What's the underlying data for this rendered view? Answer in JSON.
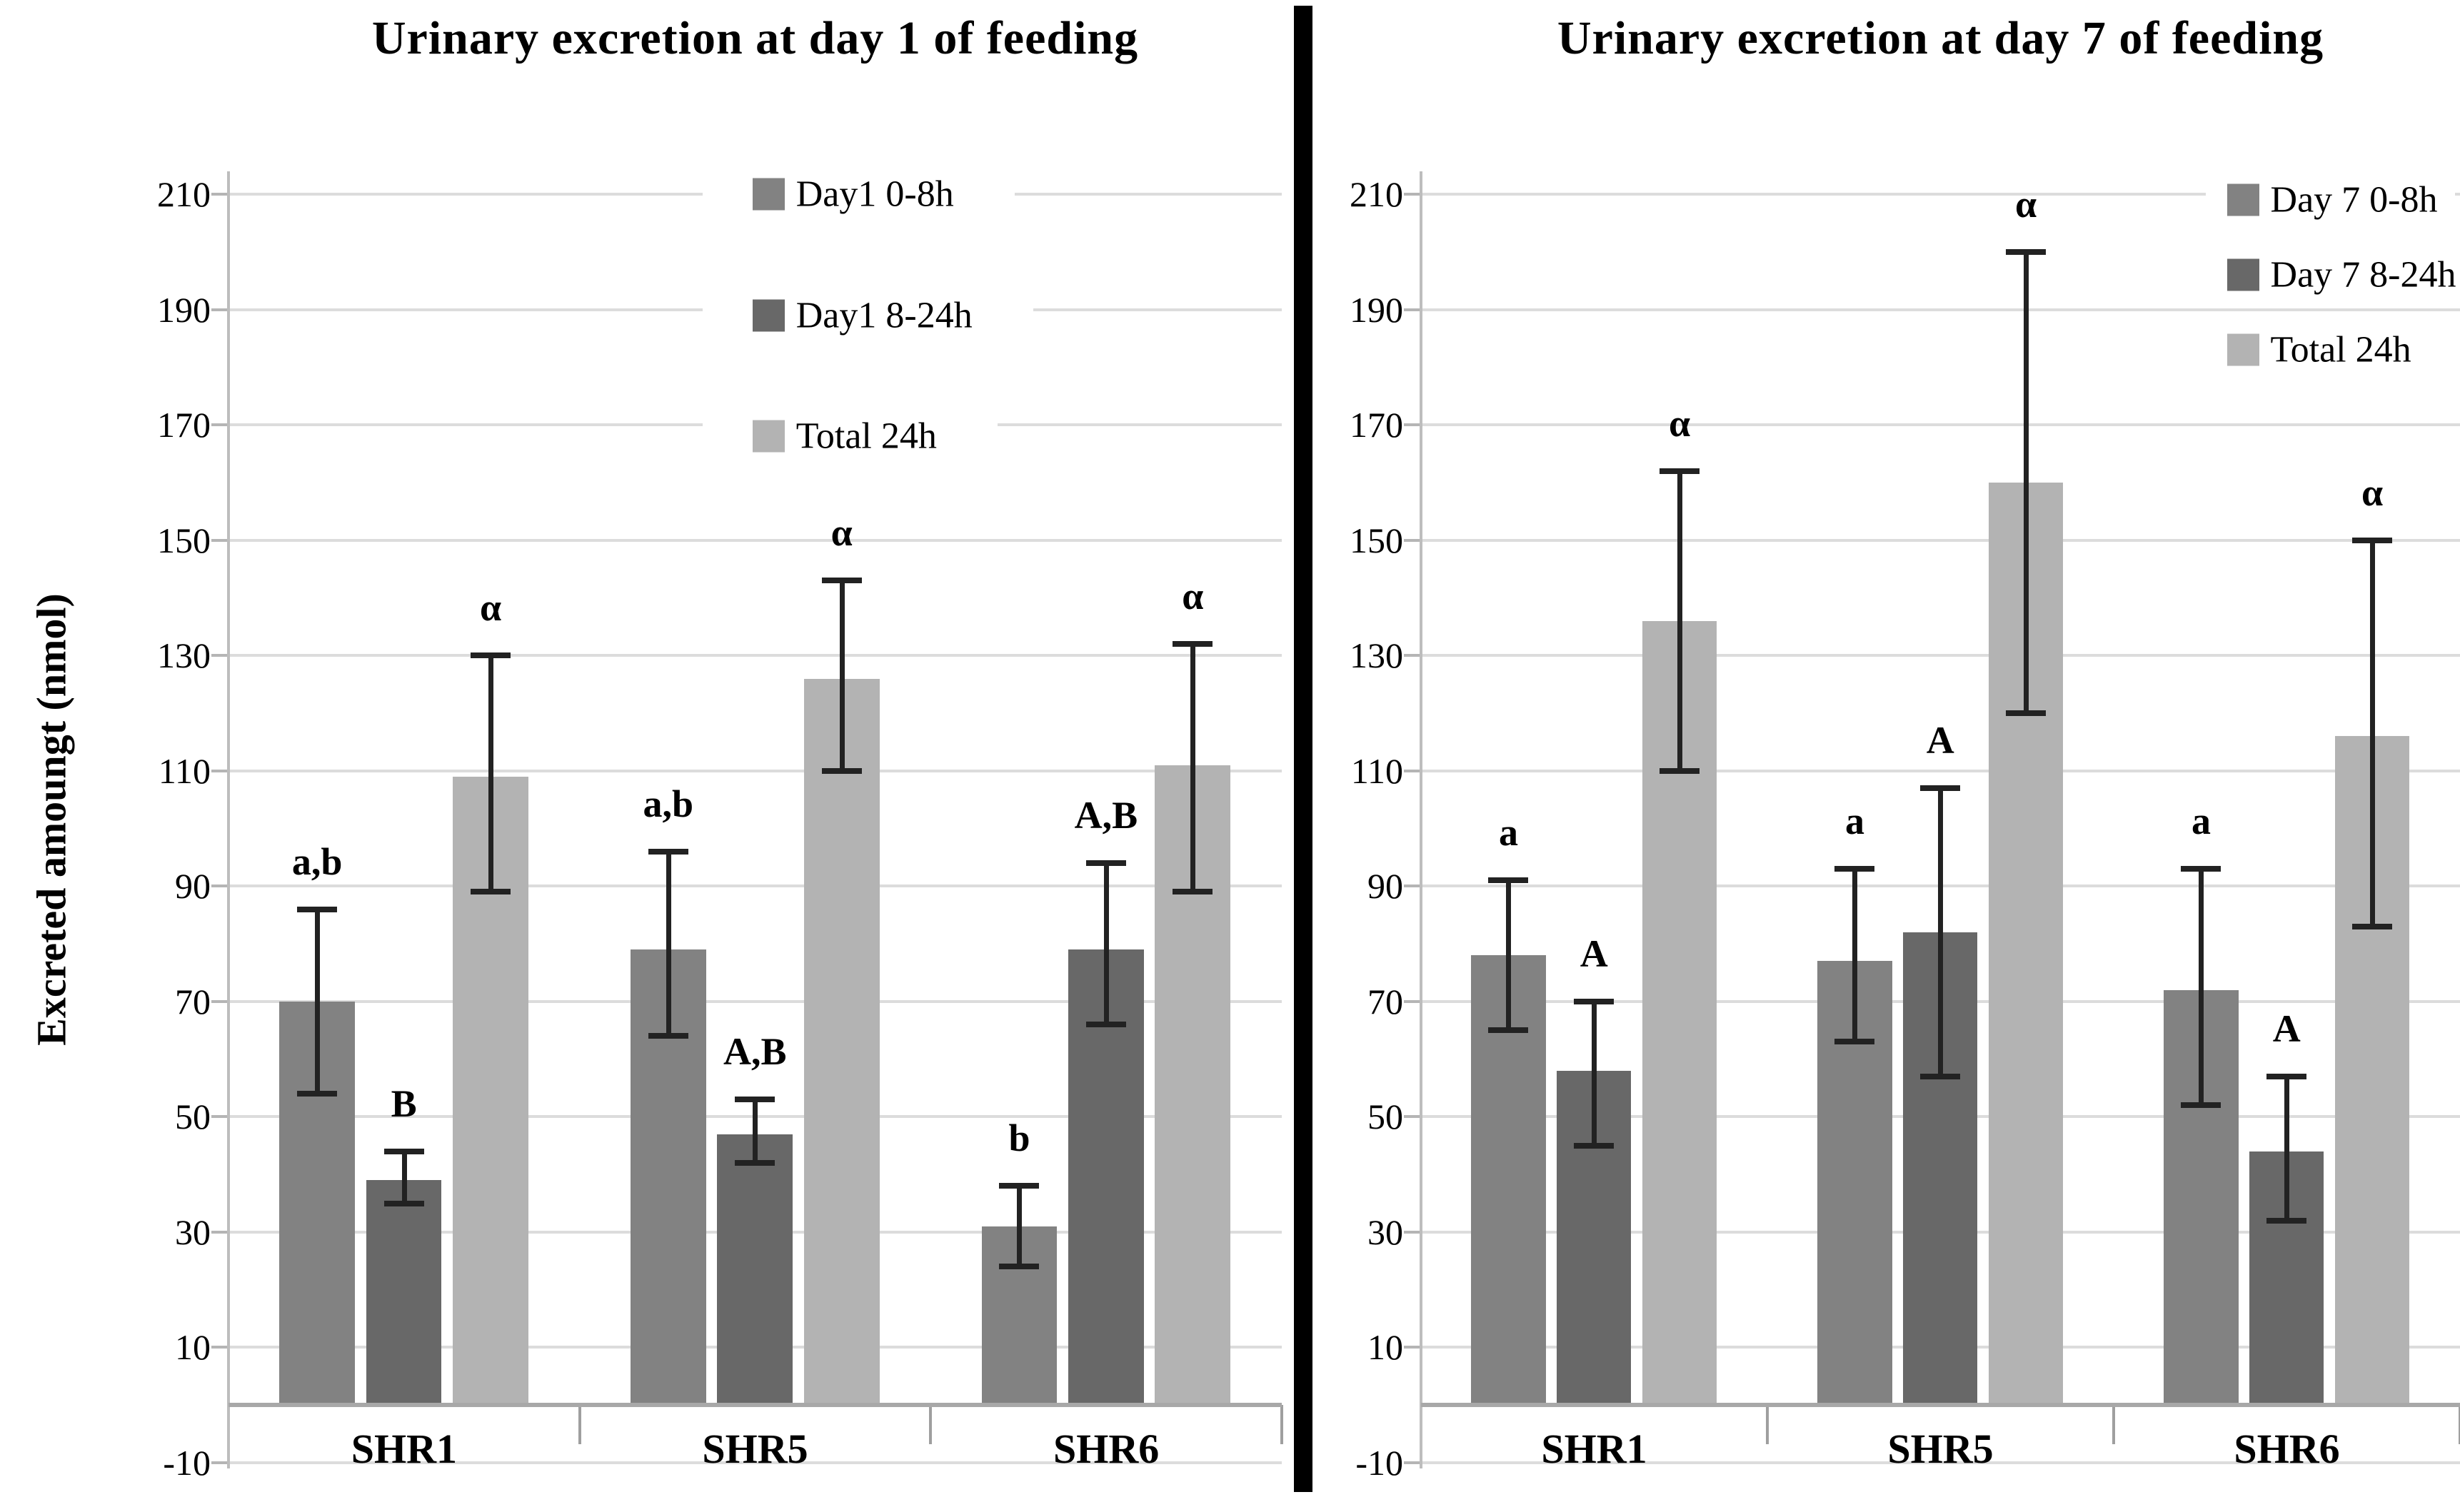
{
  "figure": {
    "background": "#ffffff",
    "divider_color": "#000000",
    "error_bar_color": "#222222",
    "gridline_color": "#dcdcdc"
  },
  "chart_data": [
    {
      "type": "bar",
      "title": "Urinary excretion at day 1 of feeding",
      "ylabel": "Excreted amoungt (nmol)",
      "xlabel": "",
      "categories": [
        "SHR1",
        "SHR5",
        "SHR6"
      ],
      "series": [
        {
          "name": "Day1 0-8h",
          "color": "#828282",
          "values": [
            70,
            79,
            31
          ],
          "err_low": [
            54,
            64,
            24
          ],
          "err_high": [
            86,
            96,
            38
          ],
          "sig": [
            "a,b",
            "a,b",
            "b"
          ]
        },
        {
          "name": "Day1 8-24h",
          "color": "#686868",
          "values": [
            39,
            47,
            79
          ],
          "err_low": [
            35,
            42,
            66
          ],
          "err_high": [
            44,
            53,
            94
          ],
          "sig": [
            "B",
            "A,B",
            "A,B"
          ]
        },
        {
          "name": "Total 24h",
          "color": "#b3b3b3",
          "values": [
            109,
            126,
            111
          ],
          "err_low": [
            89,
            110,
            89
          ],
          "err_high": [
            130,
            143,
            132
          ],
          "sig": [
            "α",
            "α",
            "α"
          ]
        }
      ],
      "ylim": [
        -10,
        210
      ],
      "yticks": [
        210,
        190,
        170,
        150,
        130,
        110,
        90,
        70,
        50,
        30,
        10,
        -10
      ],
      "grid": true,
      "legend_position": "inside top-center",
      "legend_y_values": [
        210,
        189,
        168
      ]
    },
    {
      "type": "bar",
      "title": "Urinary excretion at day 7 of feeding",
      "ylabel": "",
      "xlabel": "",
      "categories": [
        "SHR1",
        "SHR5",
        "SHR6"
      ],
      "series": [
        {
          "name": "Day 7 0-8h",
          "color": "#828282",
          "values": [
            78,
            77,
            72
          ],
          "err_low": [
            65,
            63,
            52
          ],
          "err_high": [
            91,
            93,
            93
          ],
          "sig": [
            "a",
            "a",
            "a"
          ]
        },
        {
          "name": "Day 7 8-24h",
          "color": "#686868",
          "values": [
            58,
            82,
            44
          ],
          "err_low": [
            45,
            57,
            32
          ],
          "err_high": [
            70,
            107,
            57
          ],
          "sig": [
            "A",
            "A",
            "A"
          ]
        },
        {
          "name": "Total 24h",
          "color": "#b3b3b3",
          "values": [
            136,
            160,
            116
          ],
          "err_low": [
            110,
            120,
            83
          ],
          "err_high": [
            162,
            200,
            150
          ],
          "sig": [
            "α",
            "α",
            "α"
          ]
        }
      ],
      "ylim": [
        -10,
        210
      ],
      "yticks": [
        210,
        190,
        170,
        150,
        130,
        110,
        90,
        70,
        50,
        30,
        10,
        -10
      ],
      "grid": true,
      "legend_position": "inside top-right",
      "legend_y_values": [
        209,
        196,
        183
      ]
    }
  ]
}
